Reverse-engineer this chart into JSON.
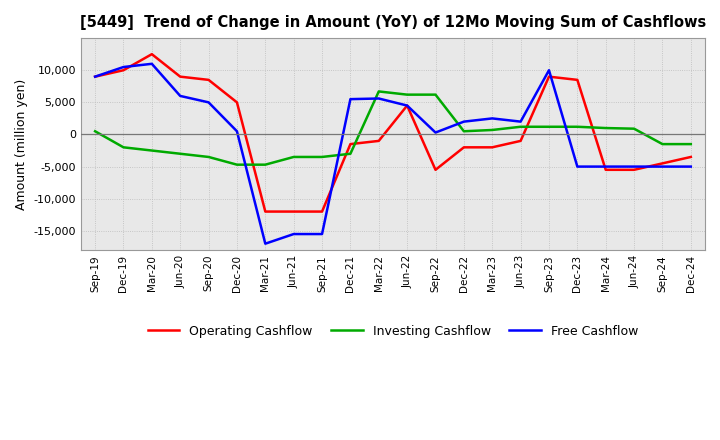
{
  "title": "[5449]  Trend of Change in Amount (YoY) of 12Mo Moving Sum of Cashflows",
  "ylabel": "Amount (million yen)",
  "x_labels": [
    "Sep-19",
    "Dec-19",
    "Mar-20",
    "Jun-20",
    "Sep-20",
    "Dec-20",
    "Mar-21",
    "Jun-21",
    "Sep-21",
    "Dec-21",
    "Mar-22",
    "Jun-22",
    "Sep-22",
    "Dec-22",
    "Mar-23",
    "Jun-23",
    "Sep-23",
    "Dec-23",
    "Mar-24",
    "Jun-24",
    "Sep-24",
    "Dec-24"
  ],
  "operating": [
    9000,
    10000,
    12500,
    9000,
    8500,
    5000,
    -12000,
    -12000,
    -12000,
    -1500,
    -1000,
    4500,
    -5500,
    -2000,
    -2000,
    -1000,
    9000,
    8500,
    -5500,
    -5500,
    -4500,
    -3500
  ],
  "investing": [
    500,
    -2000,
    -2500,
    -3000,
    -3500,
    -4700,
    -4700,
    -3500,
    -3500,
    -3000,
    6700,
    6200,
    6200,
    500,
    700,
    1200,
    1200,
    1200,
    1000,
    900,
    -1500,
    -1500
  ],
  "free": [
    9000,
    10500,
    11000,
    6000,
    5000,
    500,
    -17000,
    -15500,
    -15500,
    5500,
    5600,
    4500,
    300,
    2000,
    2500,
    2000,
    10000,
    -5000,
    -5000,
    -5000,
    -5000,
    -5000
  ],
  "op_color": "#ff0000",
  "inv_color": "#00aa00",
  "free_color": "#0000ff",
  "ylim": [
    -18000,
    15000
  ],
  "yticks": [
    -15000,
    -10000,
    -5000,
    0,
    5000,
    10000
  ],
  "legend_labels": [
    "Operating Cashflow",
    "Investing Cashflow",
    "Free Cashflow"
  ],
  "plot_bg_color": "#e8e8e8",
  "fig_bg_color": "#ffffff",
  "grid_color": "#bbbbbb"
}
